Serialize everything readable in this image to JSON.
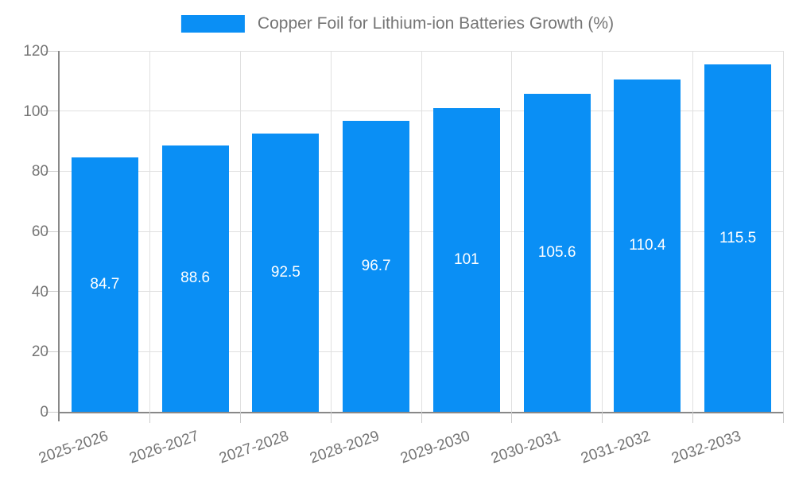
{
  "chart_data": {
    "type": "bar",
    "title": "Copper Foil for Lithium-ion Batteries Growth (%)",
    "legend_label": "Copper Foil for Lithium-ion Batteries Growth (%)",
    "legend_position": "top-center",
    "categories": [
      "2025-2026",
      "2026-2027",
      "2027-2028",
      "2028-2029",
      "2029-2030",
      "2030-2031",
      "2031-2032",
      "2032-2033"
    ],
    "values": [
      84.7,
      88.6,
      92.5,
      96.7,
      101,
      105.6,
      110.4,
      115.5
    ],
    "value_labels": [
      "84.7",
      "88.6",
      "92.5",
      "96.7",
      "101",
      "105.6",
      "110.4",
      "115.5"
    ],
    "xlabel": "",
    "ylabel": "",
    "ylim": [
      0,
      120
    ],
    "yticks": [
      0,
      20,
      40,
      60,
      80,
      100,
      120
    ],
    "grid": true,
    "x_label_rotation_deg": -19,
    "colors": {
      "bar": "#0a8ff5",
      "axis": "#888888",
      "grid": "#e0e0e0",
      "tick": "#cccccc",
      "label_text": "#757575",
      "value_text": "#ffffff",
      "background": "#ffffff"
    }
  }
}
